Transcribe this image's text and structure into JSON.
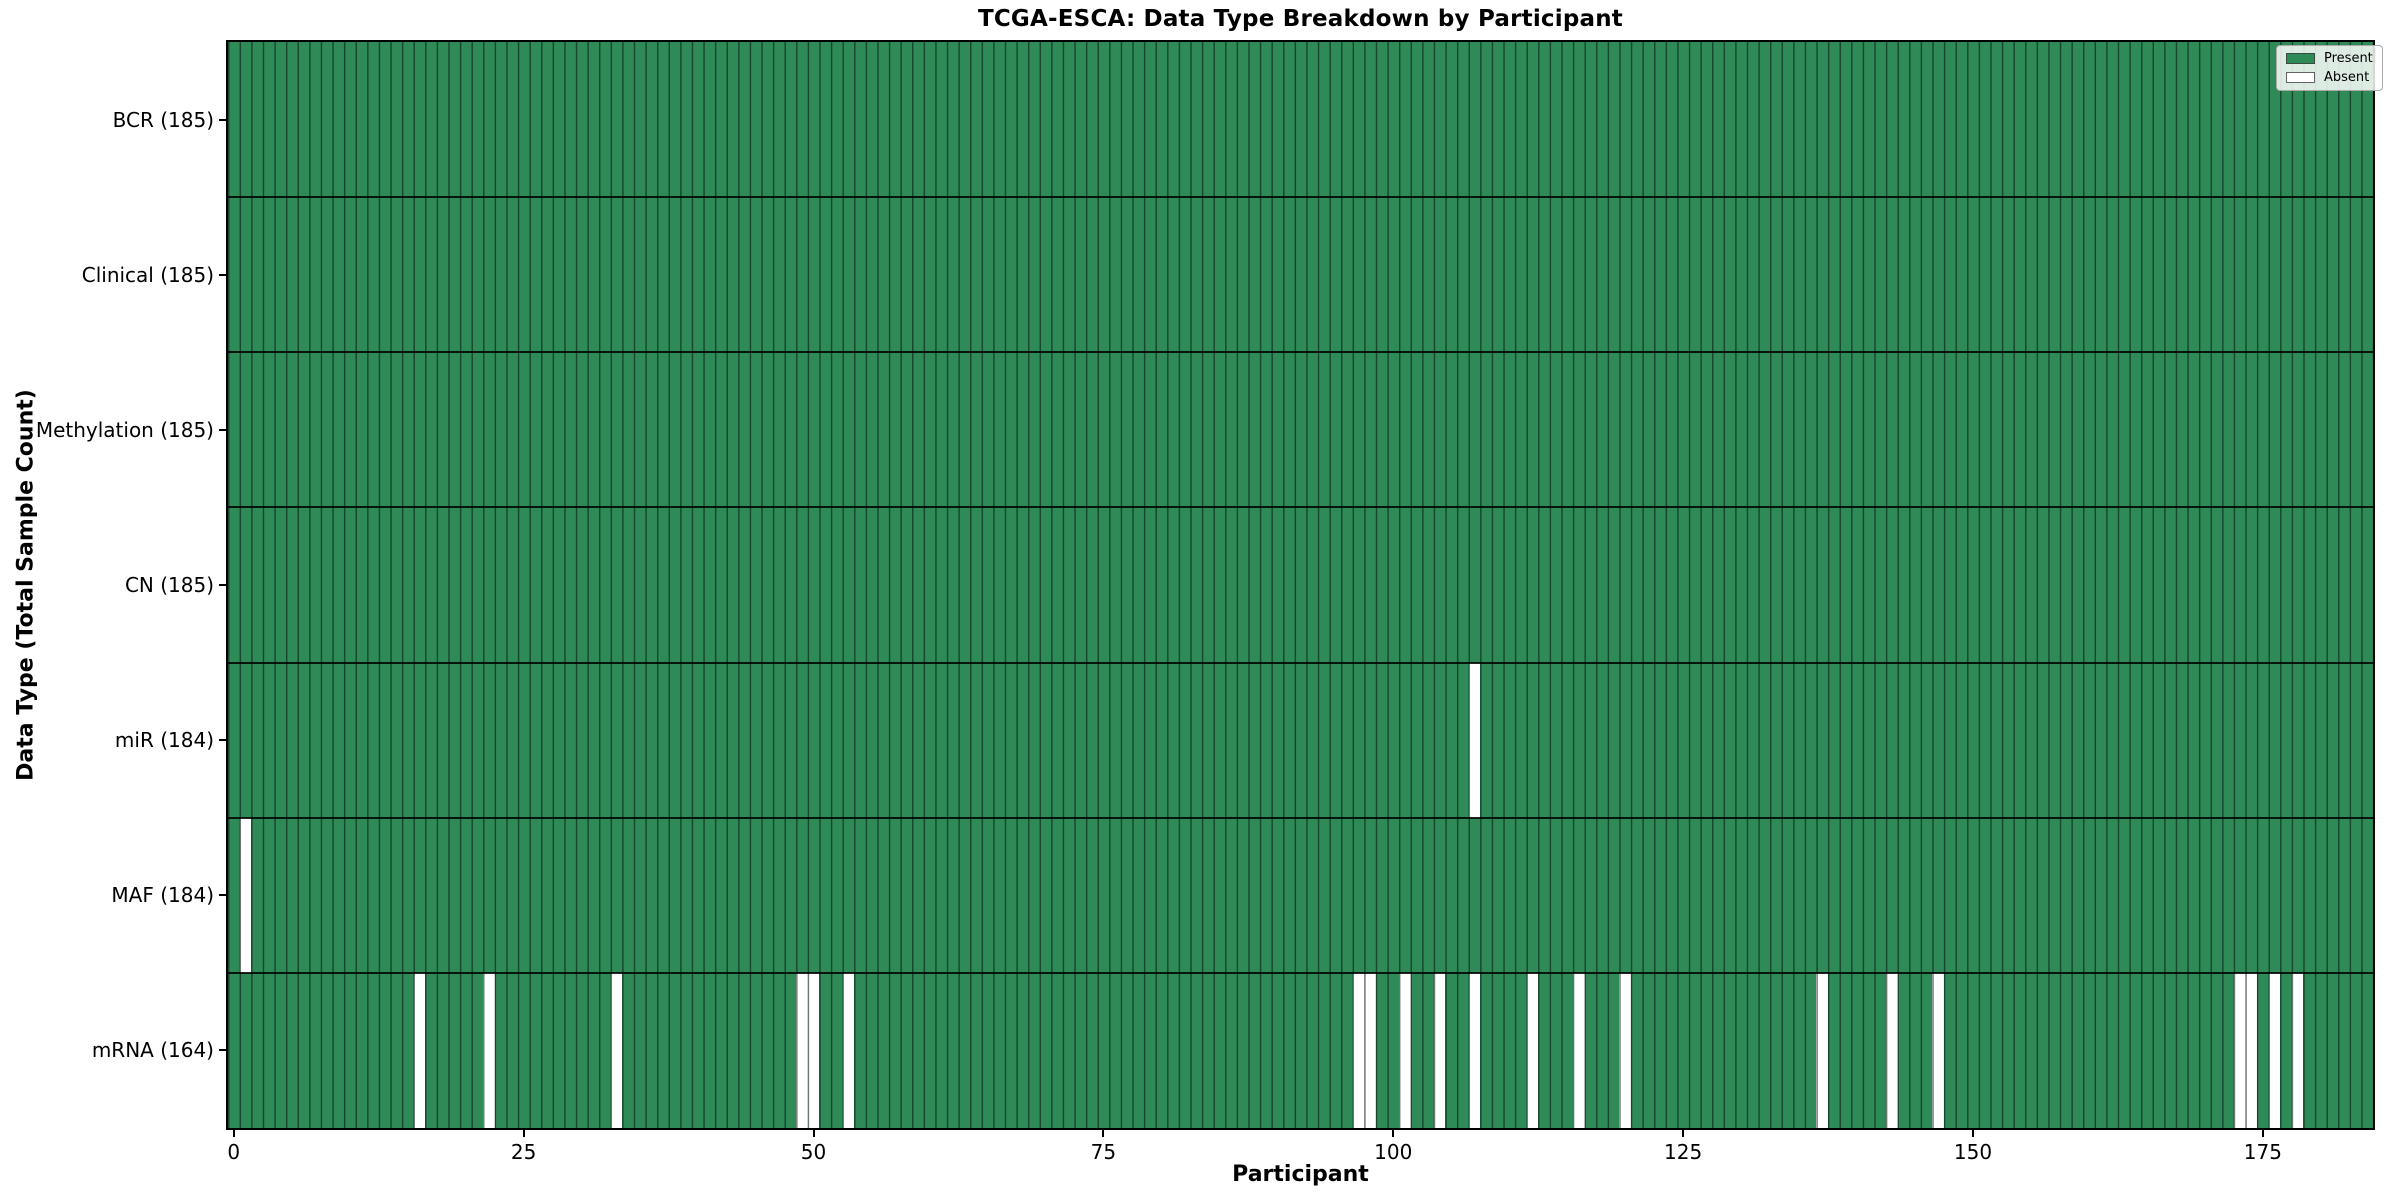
{
  "chart_data": {
    "type": "heatmap",
    "title": "TCGA-ESCA: Data Type Breakdown by Participant",
    "xlabel": "Participant",
    "ylabel": "Data Type (Total Sample Count)",
    "x_ticks": [
      0,
      25,
      50,
      75,
      100,
      125,
      150,
      175
    ],
    "n_participants": 185,
    "xlim": [
      -0.5,
      184.5
    ],
    "grid": false,
    "legend": {
      "position": "upper right",
      "entries": [
        {
          "label": "Present",
          "color": "#2e8b57"
        },
        {
          "label": "Absent",
          "color": "#ffffff"
        }
      ]
    },
    "colors": {
      "present": "#2e8b57",
      "absent": "#ffffff",
      "cell_edge": "rgba(8,26,18,0.60)",
      "row_boundary": "#1a1a1a",
      "axis": "#000000"
    },
    "rows": [
      {
        "label": "BCR (185)",
        "data_type": "BCR",
        "total_samples": 185,
        "absent_participants": []
      },
      {
        "label": "Clinical (185)",
        "data_type": "Clinical",
        "total_samples": 185,
        "absent_participants": []
      },
      {
        "label": "Methylation (185)",
        "data_type": "Methylation",
        "total_samples": 185,
        "absent_participants": []
      },
      {
        "label": "CN (185)",
        "data_type": "CN",
        "total_samples": 185,
        "absent_participants": []
      },
      {
        "label": "miR (184)",
        "data_type": "miR",
        "total_samples": 184,
        "absent_participants": [
          107
        ]
      },
      {
        "label": "MAF (184)",
        "data_type": "MAF",
        "total_samples": 184,
        "absent_participants": [
          1
        ]
      },
      {
        "label": "mRNA (164)",
        "data_type": "mRNA",
        "total_samples": 164,
        "absent_participants": [
          16,
          22,
          33,
          49,
          50,
          53,
          97,
          98,
          101,
          104,
          107,
          112,
          116,
          120,
          137,
          143,
          147,
          173,
          174,
          176,
          178
        ]
      }
    ]
  }
}
